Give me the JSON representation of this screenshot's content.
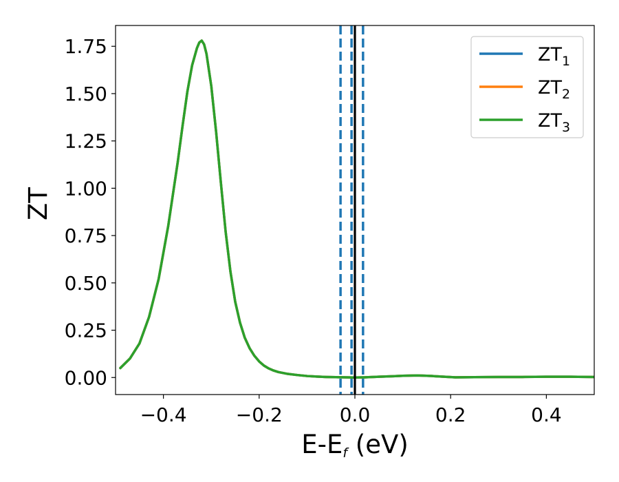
{
  "chart_data": {
    "type": "line",
    "xlabel": "E-E",
    "xlabel_sub": "f",
    "xlabel_unit": " (eV)",
    "ylabel": "ZT",
    "xlim": [
      -0.5,
      0.5
    ],
    "ylim": [
      -0.09,
      1.86
    ],
    "xticks": [
      -0.4,
      -0.2,
      0.0,
      0.2,
      0.4
    ],
    "xtick_labels": [
      "−0.4",
      "−0.2",
      "0.0",
      "0.2",
      "0.4"
    ],
    "yticks": [
      0.0,
      0.25,
      0.5,
      0.75,
      1.0,
      1.25,
      1.5,
      1.75
    ],
    "ytick_labels": [
      "0.00",
      "0.25",
      "0.50",
      "0.75",
      "1.00",
      "1.25",
      "1.50",
      "1.75"
    ],
    "grid": false,
    "legend_position": "top-right",
    "series": [
      {
        "name": "ZT",
        "sub": "1",
        "color": "#1f77b4",
        "x": [
          -0.49,
          -0.47,
          -0.45,
          -0.43,
          -0.41,
          -0.39,
          -0.37,
          -0.36,
          -0.35,
          -0.34,
          -0.33,
          -0.325,
          -0.32,
          -0.315,
          -0.31,
          -0.3,
          -0.29,
          -0.28,
          -0.27,
          -0.26,
          -0.25,
          -0.24,
          -0.23,
          -0.22,
          -0.21,
          -0.2,
          -0.19,
          -0.18,
          -0.17,
          -0.16,
          -0.14,
          -0.12,
          -0.1,
          -0.08,
          -0.06,
          -0.04,
          -0.02,
          0.0,
          0.02,
          0.05,
          0.08,
          0.1,
          0.13,
          0.16,
          0.18,
          0.21,
          0.25,
          0.3,
          0.35,
          0.4,
          0.45,
          0.5
        ],
        "y": [
          0.05,
          0.1,
          0.18,
          0.32,
          0.52,
          0.8,
          1.14,
          1.33,
          1.51,
          1.65,
          1.74,
          1.77,
          1.78,
          1.76,
          1.71,
          1.54,
          1.3,
          1.03,
          0.77,
          0.56,
          0.4,
          0.29,
          0.21,
          0.155,
          0.115,
          0.085,
          0.063,
          0.048,
          0.037,
          0.029,
          0.019,
          0.013,
          0.008,
          0.005,
          0.003,
          0.002,
          0.001,
          0.0,
          0.001,
          0.004,
          0.007,
          0.009,
          0.011,
          0.008,
          0.005,
          0.001,
          0.002,
          0.003,
          0.003,
          0.004,
          0.004,
          0.003
        ]
      },
      {
        "name": "ZT",
        "sub": "2",
        "color": "#ff7f0e",
        "x": [
          -0.49,
          -0.47,
          -0.45,
          -0.43,
          -0.41,
          -0.39,
          -0.37,
          -0.36,
          -0.35,
          -0.34,
          -0.33,
          -0.325,
          -0.32,
          -0.315,
          -0.31,
          -0.3,
          -0.29,
          -0.28,
          -0.27,
          -0.26,
          -0.25,
          -0.24,
          -0.23,
          -0.22,
          -0.21,
          -0.2,
          -0.19,
          -0.18,
          -0.17,
          -0.16,
          -0.14,
          -0.12,
          -0.1,
          -0.08,
          -0.06,
          -0.04,
          -0.02,
          0.0,
          0.02,
          0.05,
          0.08,
          0.1,
          0.13,
          0.16,
          0.18,
          0.21,
          0.25,
          0.3,
          0.35,
          0.4,
          0.45,
          0.5
        ],
        "y": [
          0.05,
          0.1,
          0.18,
          0.32,
          0.52,
          0.8,
          1.14,
          1.33,
          1.51,
          1.65,
          1.74,
          1.77,
          1.78,
          1.76,
          1.71,
          1.54,
          1.3,
          1.03,
          0.77,
          0.56,
          0.4,
          0.29,
          0.21,
          0.155,
          0.115,
          0.085,
          0.063,
          0.048,
          0.037,
          0.029,
          0.019,
          0.013,
          0.008,
          0.005,
          0.003,
          0.002,
          0.001,
          0.0,
          0.001,
          0.004,
          0.007,
          0.009,
          0.011,
          0.008,
          0.005,
          0.001,
          0.002,
          0.003,
          0.003,
          0.004,
          0.004,
          0.003
        ]
      },
      {
        "name": "ZT",
        "sub": "3",
        "color": "#2ca02c",
        "x": [
          -0.49,
          -0.47,
          -0.45,
          -0.43,
          -0.41,
          -0.39,
          -0.37,
          -0.36,
          -0.35,
          -0.34,
          -0.33,
          -0.325,
          -0.32,
          -0.315,
          -0.31,
          -0.3,
          -0.29,
          -0.28,
          -0.27,
          -0.26,
          -0.25,
          -0.24,
          -0.23,
          -0.22,
          -0.21,
          -0.2,
          -0.19,
          -0.18,
          -0.17,
          -0.16,
          -0.14,
          -0.12,
          -0.1,
          -0.08,
          -0.06,
          -0.04,
          -0.02,
          0.0,
          0.02,
          0.05,
          0.08,
          0.1,
          0.13,
          0.16,
          0.18,
          0.21,
          0.25,
          0.3,
          0.35,
          0.4,
          0.45,
          0.5
        ],
        "y": [
          0.05,
          0.1,
          0.18,
          0.32,
          0.52,
          0.8,
          1.14,
          1.33,
          1.51,
          1.65,
          1.74,
          1.77,
          1.78,
          1.76,
          1.71,
          1.54,
          1.3,
          1.03,
          0.77,
          0.56,
          0.4,
          0.29,
          0.21,
          0.155,
          0.115,
          0.085,
          0.063,
          0.048,
          0.037,
          0.029,
          0.019,
          0.013,
          0.008,
          0.005,
          0.003,
          0.002,
          0.001,
          0.0,
          0.001,
          0.004,
          0.007,
          0.009,
          0.011,
          0.008,
          0.005,
          0.001,
          0.002,
          0.003,
          0.003,
          0.004,
          0.004,
          0.003
        ]
      }
    ],
    "vlines": [
      {
        "x": -0.03,
        "style": "dashed",
        "color": "#1f77b4"
      },
      {
        "x": -0.007,
        "style": "dashed",
        "color": "#1f77b4"
      },
      {
        "x": 0.017,
        "style": "dashed",
        "color": "#1f77b4"
      },
      {
        "x": 0.0,
        "style": "solid",
        "color": "#000000"
      }
    ]
  }
}
